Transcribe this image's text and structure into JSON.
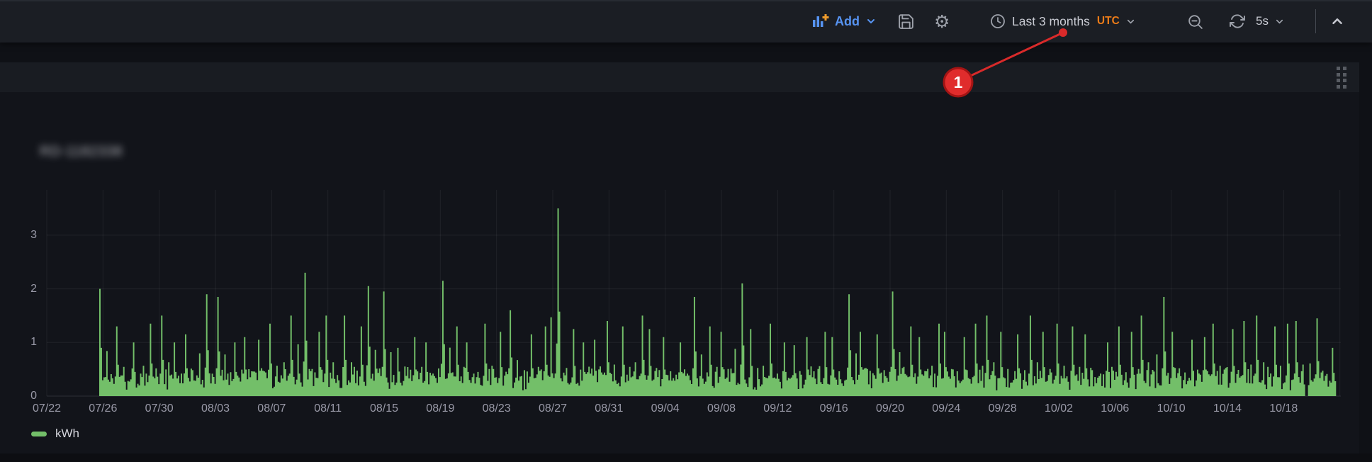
{
  "toolbar": {
    "add_label": "Add",
    "time_range_label": "Last 3 months",
    "timezone_label": "UTC",
    "refresh_interval_label": "5s",
    "accent_blue": "#5794F2",
    "accent_orange": "#EB7B18"
  },
  "annotation": {
    "badge_label": "1",
    "color": "#D92A2A"
  },
  "panel": {
    "title_blurred_text": "RD-1182338",
    "title_redacted": true
  },
  "legend": {
    "series_label": "kWh",
    "swatch_color": "#73BF69"
  },
  "chart_data": {
    "type": "bar",
    "series_name": "kWh",
    "unit": "kWh",
    "color": "#73BF69",
    "grid": true,
    "legend_position": "bottom-left",
    "ylim": [
      0,
      3.8
    ],
    "y_ticks": [
      0,
      1,
      2,
      3
    ],
    "x_tick_labels": [
      "07/22",
      "07/26",
      "07/30",
      "08/03",
      "08/07",
      "08/11",
      "08/15",
      "08/19",
      "08/23",
      "08/27",
      "08/31",
      "09/04",
      "09/08",
      "09/12",
      "09/16",
      "09/20",
      "09/24",
      "09/28",
      "10/02",
      "10/06",
      "10/10",
      "10/14",
      "10/18"
    ],
    "x_range_note": "time axis spans 07/22 to ~10/22, data present from 07/26 to 10/21",
    "baseline_range": [
      0.1,
      0.45
    ],
    "zero_gap": {
      "day_index": 85,
      "note": "brief drop to zero late on 10/19"
    },
    "days": [
      "07/26",
      "07/27",
      "07/28",
      "07/29",
      "07/30",
      "07/31",
      "08/01",
      "08/02",
      "08/03",
      "08/04",
      "08/05",
      "08/06",
      "08/07",
      "08/08",
      "08/09",
      "08/10",
      "08/11",
      "08/12",
      "08/13",
      "08/14",
      "08/15",
      "08/16",
      "08/17",
      "08/18",
      "08/19",
      "08/20",
      "08/21",
      "08/22",
      "08/23",
      "08/24",
      "08/25",
      "08/26",
      "08/27",
      "08/28",
      "08/29",
      "08/30",
      "08/31",
      "09/01",
      "09/02",
      "09/03",
      "09/04",
      "09/05",
      "09/06",
      "09/07",
      "09/08",
      "09/09",
      "09/10",
      "09/11",
      "09/12",
      "09/13",
      "09/14",
      "09/15",
      "09/16",
      "09/17",
      "09/18",
      "09/19",
      "09/20",
      "09/21",
      "09/22",
      "09/23",
      "09/24",
      "09/25",
      "09/26",
      "09/27",
      "09/28",
      "09/29",
      "09/30",
      "10/01",
      "10/02",
      "10/03",
      "10/04",
      "10/05",
      "10/06",
      "10/07",
      "10/08",
      "10/09",
      "10/10",
      "10/11",
      "10/12",
      "10/13",
      "10/14",
      "10/15",
      "10/16",
      "10/17",
      "10/18",
      "10/19",
      "10/20",
      "10/21"
    ],
    "daily_peaks": [
      2.0,
      1.3,
      1.0,
      1.35,
      1.5,
      1.0,
      1.15,
      1.9,
      1.85,
      1.0,
      1.1,
      1.05,
      1.35,
      1.5,
      2.3,
      1.2,
      1.5,
      1.5,
      1.3,
      2.05,
      1.95,
      0.9,
      1.1,
      1.0,
      2.15,
      1.3,
      1.0,
      1.35,
      1.2,
      1.6,
      1.15,
      1.3,
      3.5,
      1.25,
      1.0,
      1.05,
      1.4,
      1.3,
      1.5,
      1.25,
      1.1,
      1.0,
      1.85,
      1.3,
      1.2,
      2.1,
      1.25,
      1.35,
      1.0,
      0.95,
      1.1,
      1.2,
      1.1,
      1.9,
      1.2,
      1.15,
      1.95,
      1.3,
      1.1,
      1.35,
      1.2,
      1.1,
      1.35,
      1.5,
      1.2,
      1.15,
      1.5,
      1.2,
      1.35,
      1.3,
      1.15,
      1.0,
      1.3,
      1.2,
      1.5,
      1.85,
      1.2,
      1.05,
      1.1,
      1.35,
      1.25,
      1.4,
      1.5,
      1.3,
      1.35,
      1.4,
      1.45,
      0.9
    ]
  }
}
